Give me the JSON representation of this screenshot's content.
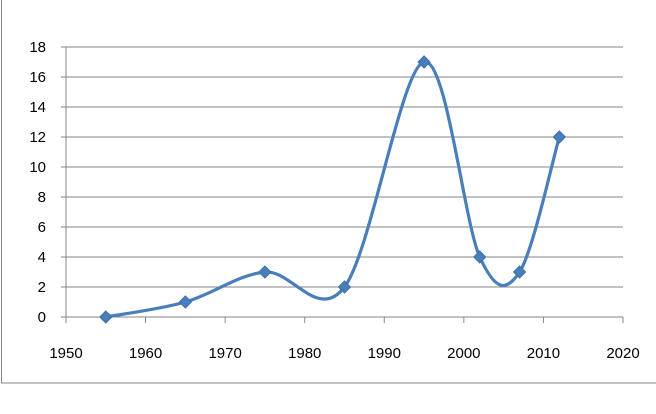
{
  "chart_data": {
    "type": "scatter",
    "title": "",
    "xlabel": "",
    "ylabel": "",
    "xlim": [
      1950,
      2020
    ],
    "ylim": [
      0,
      18
    ],
    "x_ticks": [
      "1950",
      "1960",
      "1970",
      "1980",
      "1990",
      "2000",
      "2010",
      "2020"
    ],
    "y_ticks": [
      "0",
      "2",
      "4",
      "6",
      "8",
      "10",
      "12",
      "14",
      "16",
      "18"
    ],
    "grid": "horizontal",
    "legend": "none",
    "smoothed_line": true,
    "marker": "diamond",
    "series": [
      {
        "x": [
          1955,
          1965,
          1975,
          1985,
          1995,
          2002,
          2007,
          2012
        ],
        "y": [
          0,
          1,
          3,
          2,
          17,
          4,
          3,
          12
        ]
      }
    ]
  },
  "colors": {
    "series": "#4a7ebb",
    "grid": "#868686",
    "axis": "#868686",
    "frame": "#868686"
  }
}
